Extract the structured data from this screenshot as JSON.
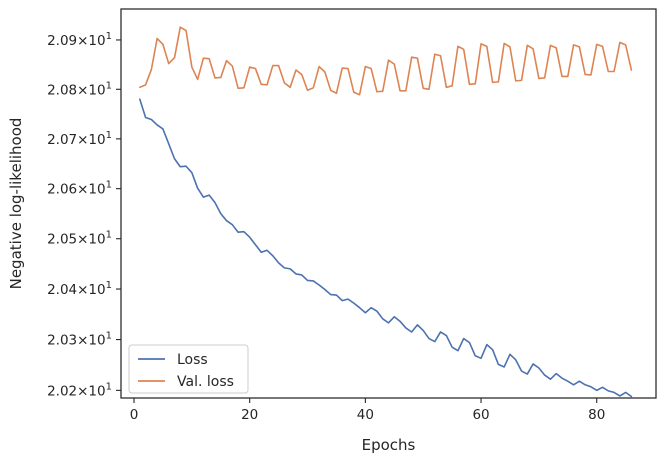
{
  "chart_data": {
    "type": "line",
    "xlabel": "Epochs",
    "ylabel": "Negative log-likelihood",
    "xlim": [
      -2.25,
      90.25
    ],
    "ylim": [
      20.185,
      20.963
    ],
    "y_scale": "log",
    "grid": false,
    "legend_position": "lower-left",
    "x_ticks": [
      {
        "value": 0,
        "label": "0"
      },
      {
        "value": 20,
        "label": "20"
      },
      {
        "value": 40,
        "label": "40"
      },
      {
        "value": 60,
        "label": "60"
      },
      {
        "value": 80,
        "label": "80"
      }
    ],
    "y_ticks": [
      {
        "value": 20.2,
        "mantissa": "2.02",
        "sup": "1"
      },
      {
        "value": 20.3,
        "mantissa": "2.03",
        "sup": "1"
      },
      {
        "value": 20.4,
        "mantissa": "2.04",
        "sup": "1"
      },
      {
        "value": 20.5,
        "mantissa": "2.05",
        "sup": "1"
      },
      {
        "value": 20.6,
        "mantissa": "2.06",
        "sup": "1"
      },
      {
        "value": 20.7,
        "mantissa": "2.07",
        "sup": "1"
      },
      {
        "value": 20.8,
        "mantissa": "2.08",
        "sup": "1"
      },
      {
        "value": 20.9,
        "mantissa": "2.09",
        "sup": "1"
      }
    ],
    "y_tick_mult": "×10",
    "series": [
      {
        "name": "Loss",
        "color": "#4c72b0",
        "x_start": 1,
        "values": [
          20.78,
          20.743,
          20.739,
          20.728,
          20.72,
          20.69,
          20.66,
          20.644,
          20.645,
          20.632,
          20.601,
          20.583,
          20.587,
          20.572,
          20.55,
          20.536,
          20.528,
          20.513,
          20.514,
          20.503,
          20.488,
          20.473,
          20.477,
          20.466,
          20.452,
          20.442,
          20.44,
          20.43,
          20.428,
          20.417,
          20.416,
          20.408,
          20.399,
          20.389,
          20.388,
          20.377,
          20.38,
          20.372,
          20.363,
          20.353,
          20.363,
          20.356,
          20.341,
          20.333,
          20.345,
          20.336,
          20.323,
          20.315,
          20.329,
          20.318,
          20.302,
          20.296,
          20.315,
          20.308,
          20.285,
          20.278,
          20.302,
          20.294,
          20.268,
          20.263,
          20.29,
          20.28,
          20.251,
          20.246,
          20.271,
          20.26,
          20.238,
          20.232,
          20.252,
          20.244,
          20.23,
          20.222,
          20.233,
          20.224,
          20.218,
          20.211,
          20.218,
          20.211,
          20.207,
          20.2,
          20.206,
          20.199,
          20.196,
          20.189,
          20.196,
          20.188
        ]
      },
      {
        "name": "Val. loss",
        "color": "#dd8452",
        "x_start": 1,
        "values": [
          20.804,
          20.809,
          20.84,
          20.903,
          20.891,
          20.852,
          20.864,
          20.926,
          20.919,
          20.845,
          20.82,
          20.863,
          20.862,
          20.823,
          20.824,
          20.858,
          20.847,
          20.802,
          20.803,
          20.845,
          20.842,
          20.81,
          20.809,
          20.848,
          20.848,
          20.813,
          20.804,
          20.839,
          20.83,
          20.798,
          20.803,
          20.846,
          20.835,
          20.798,
          20.792,
          20.843,
          20.842,
          20.794,
          20.789,
          20.846,
          20.842,
          20.795,
          20.796,
          20.859,
          20.851,
          20.797,
          20.797,
          20.865,
          20.863,
          20.802,
          20.8,
          20.871,
          20.868,
          20.804,
          20.807,
          20.887,
          20.881,
          20.81,
          20.811,
          20.892,
          20.887,
          20.814,
          20.815,
          20.893,
          20.886,
          20.817,
          20.818,
          20.889,
          20.882,
          20.822,
          20.823,
          20.889,
          20.884,
          20.826,
          20.826,
          20.89,
          20.886,
          20.83,
          20.829,
          20.891,
          20.887,
          20.836,
          20.836,
          20.895,
          20.89,
          20.839
        ]
      }
    ]
  }
}
